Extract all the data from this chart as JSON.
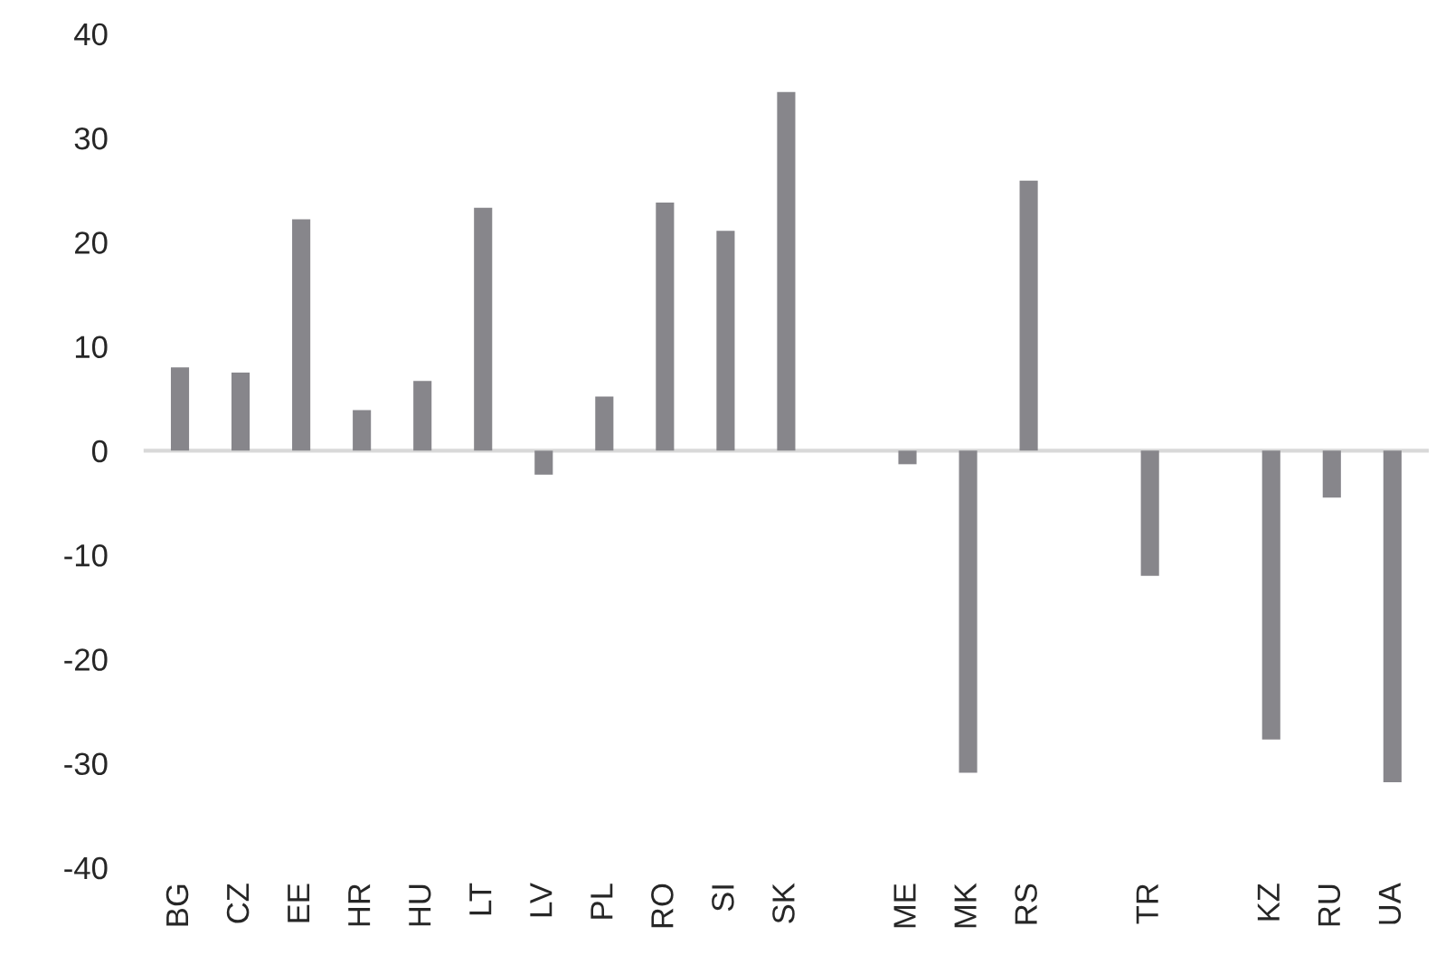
{
  "chart_data": {
    "type": "bar",
    "categories": [
      "BG",
      "CZ",
      "EE",
      "HR",
      "HU",
      "LT",
      "LV",
      "PL",
      "RO",
      "SI",
      "SK",
      null,
      "ME",
      "MK",
      "RS",
      null,
      "TR",
      null,
      "KZ",
      "RU",
      "UA"
    ],
    "values": [
      8.0,
      7.5,
      22.2,
      3.9,
      6.7,
      23.3,
      -2.3,
      5.2,
      23.8,
      21.1,
      34.4,
      null,
      -1.3,
      -30.9,
      25.9,
      null,
      -12.0,
      null,
      -27.7,
      -4.5,
      -31.8
    ],
    "color": "#87868b",
    "ylim": [
      -40,
      40
    ],
    "yticks": [
      -40,
      -30,
      -20,
      -10,
      0,
      10,
      20,
      30,
      40
    ],
    "ref_lines": [
      {
        "axis": "y",
        "value": 0,
        "color": "#d9d9d9"
      }
    ]
  }
}
